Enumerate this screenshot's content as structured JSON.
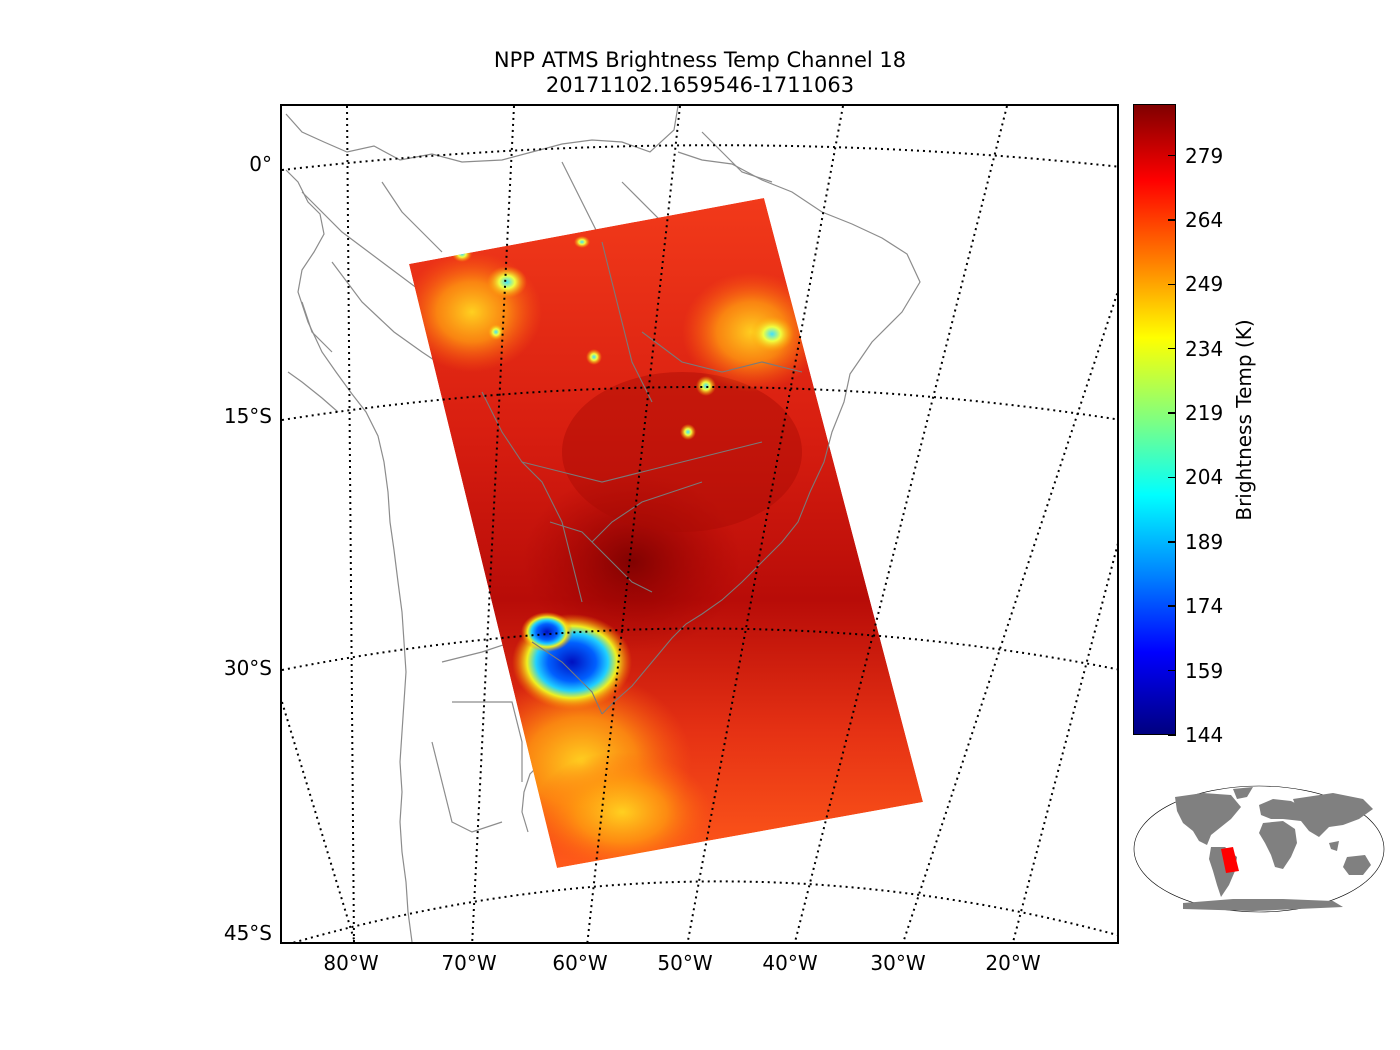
{
  "title": {
    "line1": "NPP ATMS Brightness Temp Channel 18",
    "line2": "20171102.1659546-1711063"
  },
  "latitude_labels": [
    "0°",
    "15°S",
    "30°S",
    "45°S"
  ],
  "longitude_labels": [
    "80°W",
    "70°W",
    "60°W",
    "50°W",
    "40°W",
    "30°W",
    "20°W"
  ],
  "colorbar": {
    "label": "Brightness Temp (K)",
    "ticks": [
      "279",
      "264",
      "249",
      "234",
      "219",
      "204",
      "189",
      "174",
      "159",
      "144"
    ],
    "min": 144,
    "max": 291,
    "colormap": "jet"
  },
  "swath": {
    "dominant_value_K": 270,
    "min_value_K": 150,
    "low_value_regions": [
      "northern Argentina / Paraguay border storm",
      "southern Amazon convection",
      "northeast Brazil cells"
    ]
  },
  "colors": {
    "coastline": "#8c8c8c",
    "graticule": "#000000",
    "inset_land": "#808080",
    "inset_swath": "#ff0000"
  }
}
